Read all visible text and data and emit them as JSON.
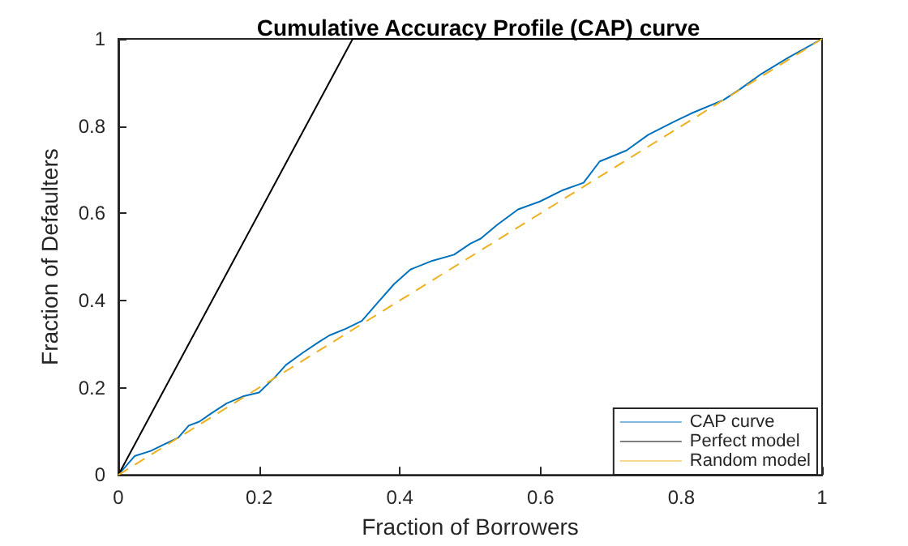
{
  "chart_data": {
    "type": "line",
    "title": "Cumulative Accuracy Profile (CAP) curve",
    "xlabel": "Fraction of Borrowers",
    "ylabel": "Fraction of Defaulters",
    "xlim": [
      0,
      1
    ],
    "ylim": [
      0,
      1
    ],
    "xticks": [
      0,
      0.2,
      0.4,
      0.6,
      0.8,
      1
    ],
    "yticks": [
      0,
      0.2,
      0.4,
      0.6,
      0.8,
      1
    ],
    "grid": false,
    "legend": "bottom right",
    "marker": "none",
    "series": [
      {
        "name": "CAP curve",
        "color": "#0072bd",
        "line_style": "solid",
        "x": [
          0,
          0.023,
          0.046,
          0.069,
          0.085,
          0.1,
          0.115,
          0.131,
          0.154,
          0.177,
          0.2,
          0.223,
          0.238,
          0.262,
          0.285,
          0.3,
          0.323,
          0.346,
          0.369,
          0.392,
          0.415,
          0.446,
          0.477,
          0.5,
          0.515,
          0.538,
          0.568,
          0.599,
          0.63,
          0.661,
          0.684,
          0.722,
          0.753,
          0.791,
          0.814,
          0.86,
          0.883,
          0.914,
          0.952,
          1
        ],
        "values": [
          0,
          0.043,
          0.055,
          0.073,
          0.085,
          0.113,
          0.122,
          0.14,
          0.164,
          0.18,
          0.189,
          0.225,
          0.252,
          0.28,
          0.305,
          0.32,
          0.335,
          0.353,
          0.396,
          0.438,
          0.471,
          0.491,
          0.505,
          0.53,
          0.542,
          0.573,
          0.609,
          0.627,
          0.652,
          0.67,
          0.719,
          0.744,
          0.78,
          0.811,
          0.829,
          0.86,
          0.884,
          0.92,
          0.957,
          1
        ]
      },
      {
        "name": "Perfect model",
        "color": "#000000",
        "line_style": "solid",
        "x": [
          0,
          0.333,
          1
        ],
        "values": [
          0,
          1,
          1
        ]
      },
      {
        "name": "Random model",
        "color": "#edb120",
        "line_style": "dashed",
        "x": [
          0,
          1
        ],
        "values": [
          0,
          1
        ]
      }
    ]
  }
}
